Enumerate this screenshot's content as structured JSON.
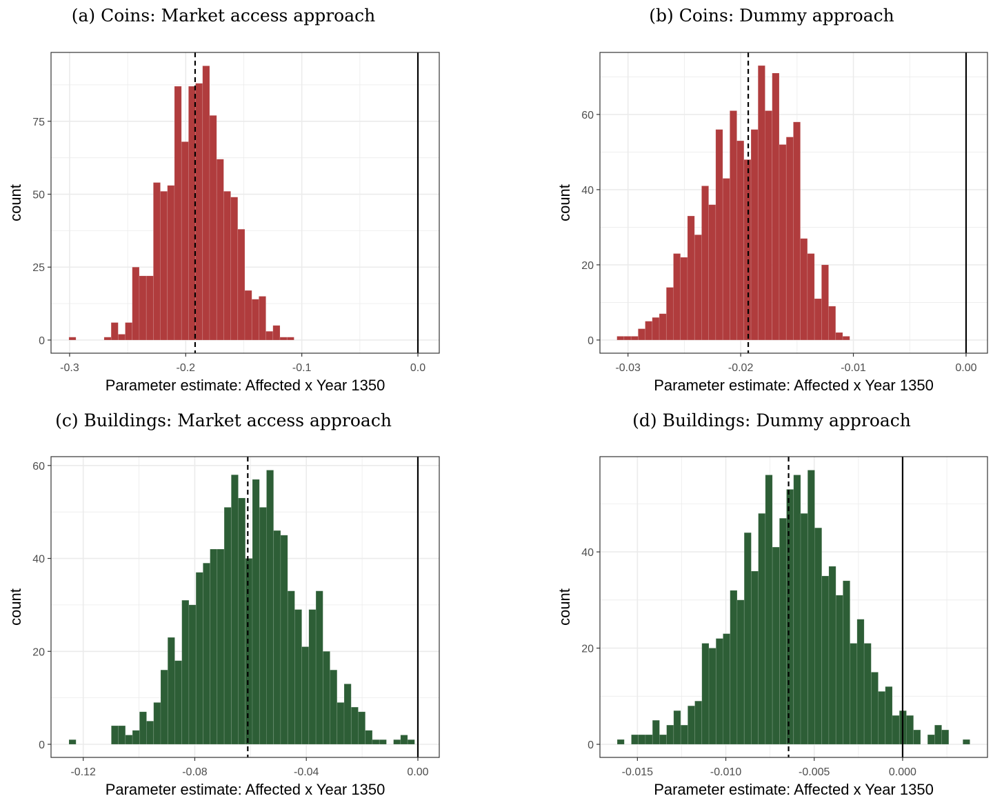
{
  "chart_data": [
    {
      "type": "bar",
      "panel": "a",
      "title": "(a) Coins: Market access approach",
      "xlabel": "Parameter estimate: Affected x Year 1350",
      "ylabel": "count",
      "color": "#b03c3d",
      "bin_start": -0.3006,
      "bin_width": 0.00606,
      "counts": [
        1,
        0,
        0,
        0,
        0,
        1,
        6,
        2,
        6,
        25,
        22,
        22,
        54,
        51,
        53,
        87,
        68,
        87,
        88,
        94,
        77,
        62,
        51,
        49,
        38,
        17,
        14,
        15,
        3,
        5,
        1,
        1
      ],
      "xlim": [
        -0.316,
        0.0184
      ],
      "ylim": [
        -4.5,
        98.6
      ],
      "xticks": [
        -0.3,
        -0.2,
        -0.1,
        0.0
      ],
      "xtick_labels": [
        "-0.3",
        "-0.2",
        "-0.1",
        "0.0"
      ],
      "yticks": [
        0,
        25,
        50,
        75
      ],
      "ytick_labels": [
        "0",
        "25",
        "50",
        "75"
      ],
      "mean_line": -0.1919,
      "zero_line": 0
    },
    {
      "type": "bar",
      "panel": "b",
      "title": "(b) Coins: Dummy approach",
      "xlabel": "Parameter estimate: Affected x Year 1350",
      "ylabel": "count",
      "color": "#b03c3d",
      "bin_start": -0.03098,
      "bin_width": 0.000626,
      "counts": [
        1,
        1,
        1,
        3,
        5,
        6,
        7,
        14,
        23,
        22,
        33,
        28,
        41,
        36,
        56,
        43,
        61,
        53,
        48,
        56,
        73,
        61,
        71,
        52,
        54,
        58,
        27,
        23,
        11,
        20,
        9,
        2,
        1
      ],
      "xlim": [
        -0.03249,
        0.0019
      ],
      "ylim": [
        -3.5,
        76.5
      ],
      "xticks": [
        -0.03,
        -0.02,
        -0.01,
        0.0
      ],
      "xtick_labels": [
        "-0.03",
        "-0.02",
        "-0.01",
        "0.00"
      ],
      "yticks": [
        0,
        20,
        40,
        60
      ],
      "ytick_labels": [
        "0",
        "20",
        "40",
        "60"
      ],
      "mean_line": -0.01933,
      "zero_line": 0
    },
    {
      "type": "bar",
      "panel": "c",
      "title": "(c) Buildings: Market access approach",
      "xlabel": "Parameter estimate: Affected x Year 1350",
      "ylabel": "count",
      "color": "#2d5e36",
      "bin_start": -0.12512,
      "bin_width": 0.00253,
      "counts": [
        1,
        0,
        0,
        0,
        0,
        0,
        4,
        4,
        2,
        3,
        7,
        5,
        9,
        16,
        23,
        18,
        31,
        30,
        37,
        39,
        42,
        42,
        51,
        58,
        53,
        40,
        57,
        51,
        59,
        46,
        45,
        33,
        29,
        21,
        29,
        33,
        20,
        16,
        9,
        13,
        8,
        7,
        3,
        1,
        1,
        0,
        1,
        2,
        1
      ],
      "xlim": [
        -0.13155,
        0.00767
      ],
      "ylim": [
        -2.82,
        61.9
      ],
      "xticks": [
        -0.12,
        -0.08,
        -0.04,
        0.0
      ],
      "xtick_labels": [
        "-0.12",
        "-0.08",
        "-0.04",
        "0.00"
      ],
      "yticks": [
        0,
        20,
        40,
        60
      ],
      "ytick_labels": [
        "0",
        "20",
        "40",
        "60"
      ],
      "mean_line": -0.061,
      "zero_line": 0
    },
    {
      "type": "bar",
      "panel": "d",
      "title": "(d) Buildings: Dummy approach",
      "xlabel": "Parameter estimate: Affected x Year 1350",
      "ylabel": "count",
      "color": "#2d5e36",
      "bin_start": -0.016143,
      "bin_width": 0.000399,
      "counts": [
        1,
        0,
        2,
        2,
        2,
        5,
        2,
        4,
        7,
        4,
        8,
        9,
        21,
        20,
        22,
        23,
        32,
        30,
        44,
        36,
        48,
        56,
        41,
        47,
        53,
        56,
        48,
        57,
        45,
        35,
        37,
        31,
        34,
        21,
        26,
        21,
        15,
        11,
        12,
        6,
        7,
        6,
        3,
        0,
        2,
        4,
        3,
        0,
        0,
        1
      ],
      "xlim": [
        -0.01712,
        0.0048
      ],
      "ylim": [
        -2.72,
        59.8
      ],
      "xticks": [
        -0.015,
        -0.01,
        -0.005,
        0.0
      ],
      "xtick_labels": [
        "-0.015",
        "-0.010",
        "-0.005",
        "0.000"
      ],
      "yticks": [
        0,
        20,
        40
      ],
      "ytick_labels": [
        "0",
        "20",
        "40"
      ],
      "mean_line": -0.00645,
      "zero_line": 0
    }
  ]
}
